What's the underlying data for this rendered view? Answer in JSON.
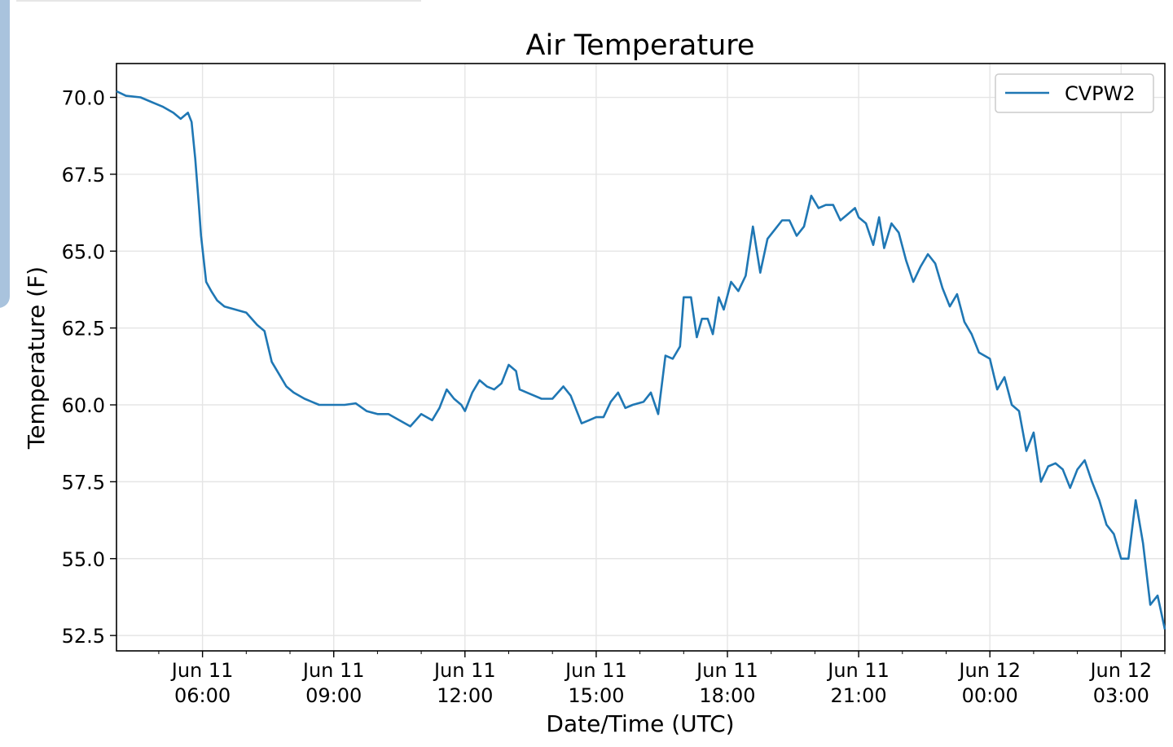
{
  "chart_data": {
    "type": "line",
    "title": "Air Temperature",
    "xlabel": "Date/Time (UTC)",
    "ylabel": "Temperature (F)",
    "grid": true,
    "legend": {
      "placement": "top-right",
      "entries": [
        "CVPW2"
      ]
    },
    "xlim": [
      "2024-06-11T04:02",
      "2024-06-12T04:00"
    ],
    "ylim": [
      52.0,
      71.1
    ],
    "x_ticks": [
      {
        "value": "2024-06-11T06:00",
        "line1": "Jun 11",
        "line2": "06:00"
      },
      {
        "value": "2024-06-11T09:00",
        "line1": "Jun 11",
        "line2": "09:00"
      },
      {
        "value": "2024-06-11T12:00",
        "line1": "Jun 11",
        "line2": "12:00"
      },
      {
        "value": "2024-06-11T15:00",
        "line1": "Jun 11",
        "line2": "15:00"
      },
      {
        "value": "2024-06-11T18:00",
        "line1": "Jun 11",
        "line2": "18:00"
      },
      {
        "value": "2024-06-11T21:00",
        "line1": "Jun 11",
        "line2": "21:00"
      },
      {
        "value": "2024-06-12T00:00",
        "line1": "Jun 12",
        "line2": "00:00"
      },
      {
        "value": "2024-06-12T03:00",
        "line1": "Jun 12",
        "line2": "03:00"
      }
    ],
    "y_ticks": [
      "52.5",
      "55.0",
      "57.5",
      "60.0",
      "62.5",
      "65.0",
      "67.5",
      "70.0"
    ],
    "colors": {
      "series": "#1f77b4"
    },
    "series": [
      {
        "name": "CVPW2",
        "x": [
          "2024-06-11T04:02",
          "2024-06-11T04:15",
          "2024-06-11T04:35",
          "2024-06-11T04:55",
          "2024-06-11T05:05",
          "2024-06-11T05:20",
          "2024-06-11T05:30",
          "2024-06-11T05:40",
          "2024-06-11T05:45",
          "2024-06-11T05:50",
          "2024-06-11T05:55",
          "2024-06-11T05:58",
          "2024-06-11T06:05",
          "2024-06-11T06:12",
          "2024-06-11T06:20",
          "2024-06-11T06:30",
          "2024-06-11T06:45",
          "2024-06-11T07:00",
          "2024-06-11T07:15",
          "2024-06-11T07:25",
          "2024-06-11T07:35",
          "2024-06-11T07:45",
          "2024-06-11T07:55",
          "2024-06-11T08:05",
          "2024-06-11T08:20",
          "2024-06-11T08:40",
          "2024-06-11T09:00",
          "2024-06-11T09:15",
          "2024-06-11T09:30",
          "2024-06-11T09:45",
          "2024-06-11T10:00",
          "2024-06-11T10:15",
          "2024-06-11T10:30",
          "2024-06-11T10:45",
          "2024-06-11T11:00",
          "2024-06-11T11:15",
          "2024-06-11T11:25",
          "2024-06-11T11:35",
          "2024-06-11T11:45",
          "2024-06-11T11:55",
          "2024-06-11T12:00",
          "2024-06-11T12:10",
          "2024-06-11T12:20",
          "2024-06-11T12:30",
          "2024-06-11T12:40",
          "2024-06-11T12:50",
          "2024-06-11T13:00",
          "2024-06-11T13:10",
          "2024-06-11T13:15",
          "2024-06-11T13:25",
          "2024-06-11T13:35",
          "2024-06-11T13:45",
          "2024-06-11T14:00",
          "2024-06-11T14:15",
          "2024-06-11T14:25",
          "2024-06-11T14:40",
          "2024-06-11T14:50",
          "2024-06-11T15:00",
          "2024-06-11T15:10",
          "2024-06-11T15:20",
          "2024-06-11T15:30",
          "2024-06-11T15:40",
          "2024-06-11T15:50",
          "2024-06-11T16:05",
          "2024-06-11T16:15",
          "2024-06-11T16:25",
          "2024-06-11T16:35",
          "2024-06-11T16:45",
          "2024-06-11T16:55",
          "2024-06-11T17:00",
          "2024-06-11T17:10",
          "2024-06-11T17:18",
          "2024-06-11T17:25",
          "2024-06-11T17:33",
          "2024-06-11T17:40",
          "2024-06-11T17:48",
          "2024-06-11T17:55",
          "2024-06-11T18:05",
          "2024-06-11T18:15",
          "2024-06-11T18:25",
          "2024-06-11T18:35",
          "2024-06-11T18:45",
          "2024-06-11T18:55",
          "2024-06-11T19:05",
          "2024-06-11T19:15",
          "2024-06-11T19:25",
          "2024-06-11T19:35",
          "2024-06-11T19:45",
          "2024-06-11T19:55",
          "2024-06-11T20:05",
          "2024-06-11T20:15",
          "2024-06-11T20:25",
          "2024-06-11T20:35",
          "2024-06-11T20:45",
          "2024-06-11T20:55",
          "2024-06-11T21:00",
          "2024-06-11T21:10",
          "2024-06-11T21:20",
          "2024-06-11T21:28",
          "2024-06-11T21:35",
          "2024-06-11T21:45",
          "2024-06-11T21:55",
          "2024-06-11T22:05",
          "2024-06-11T22:15",
          "2024-06-11T22:25",
          "2024-06-11T22:35",
          "2024-06-11T22:45",
          "2024-06-11T22:55",
          "2024-06-11T23:05",
          "2024-06-11T23:15",
          "2024-06-11T23:25",
          "2024-06-11T23:35",
          "2024-06-11T23:45",
          "2024-06-12T00:00",
          "2024-06-12T00:10",
          "2024-06-12T00:20",
          "2024-06-12T00:30",
          "2024-06-12T00:40",
          "2024-06-12T00:50",
          "2024-06-12T01:00",
          "2024-06-12T01:10",
          "2024-06-12T01:20",
          "2024-06-12T01:30",
          "2024-06-12T01:40",
          "2024-06-12T01:50",
          "2024-06-12T02:00",
          "2024-06-12T02:10",
          "2024-06-12T02:20",
          "2024-06-12T02:30",
          "2024-06-12T02:40",
          "2024-06-12T02:50",
          "2024-06-12T03:00",
          "2024-06-12T03:10",
          "2024-06-12T03:20",
          "2024-06-12T03:30",
          "2024-06-12T03:40",
          "2024-06-12T03:50",
          "2024-06-12T04:00"
        ],
        "values": [
          70.2,
          70.05,
          70.0,
          69.8,
          69.7,
          69.5,
          69.3,
          69.5,
          69.2,
          68.0,
          66.5,
          65.5,
          64.0,
          63.7,
          63.4,
          63.2,
          63.1,
          63.0,
          62.6,
          62.4,
          61.4,
          61.0,
          60.6,
          60.4,
          60.2,
          60.0,
          60.0,
          60.0,
          60.05,
          59.8,
          59.7,
          59.7,
          59.5,
          59.3,
          59.7,
          59.5,
          59.9,
          60.5,
          60.2,
          60.0,
          59.8,
          60.4,
          60.8,
          60.6,
          60.5,
          60.7,
          61.3,
          61.1,
          60.5,
          60.4,
          60.3,
          60.2,
          60.2,
          60.6,
          60.3,
          59.4,
          59.5,
          59.6,
          59.6,
          60.1,
          60.4,
          59.9,
          60.0,
          60.1,
          60.4,
          59.7,
          61.6,
          61.5,
          61.9,
          63.5,
          63.5,
          62.2,
          62.8,
          62.8,
          62.3,
          63.5,
          63.1,
          64.0,
          63.7,
          64.2,
          65.8,
          64.3,
          65.4,
          65.7,
          66.0,
          66.0,
          65.5,
          65.8,
          66.8,
          66.4,
          66.5,
          66.5,
          66.0,
          66.2,
          66.4,
          66.1,
          65.9,
          65.2,
          66.1,
          65.1,
          65.9,
          65.6,
          64.7,
          64.0,
          64.5,
          64.9,
          64.6,
          63.8,
          63.2,
          63.6,
          62.7,
          62.3,
          61.7,
          61.5,
          60.5,
          60.9,
          60.0,
          59.8,
          58.5,
          59.1,
          57.5,
          58.0,
          58.1,
          57.9,
          57.3,
          57.9,
          58.2,
          57.5,
          56.9,
          56.1,
          55.8,
          55.0,
          55.0,
          56.9,
          55.5,
          53.5,
          53.8,
          52.7
        ]
      }
    ]
  }
}
